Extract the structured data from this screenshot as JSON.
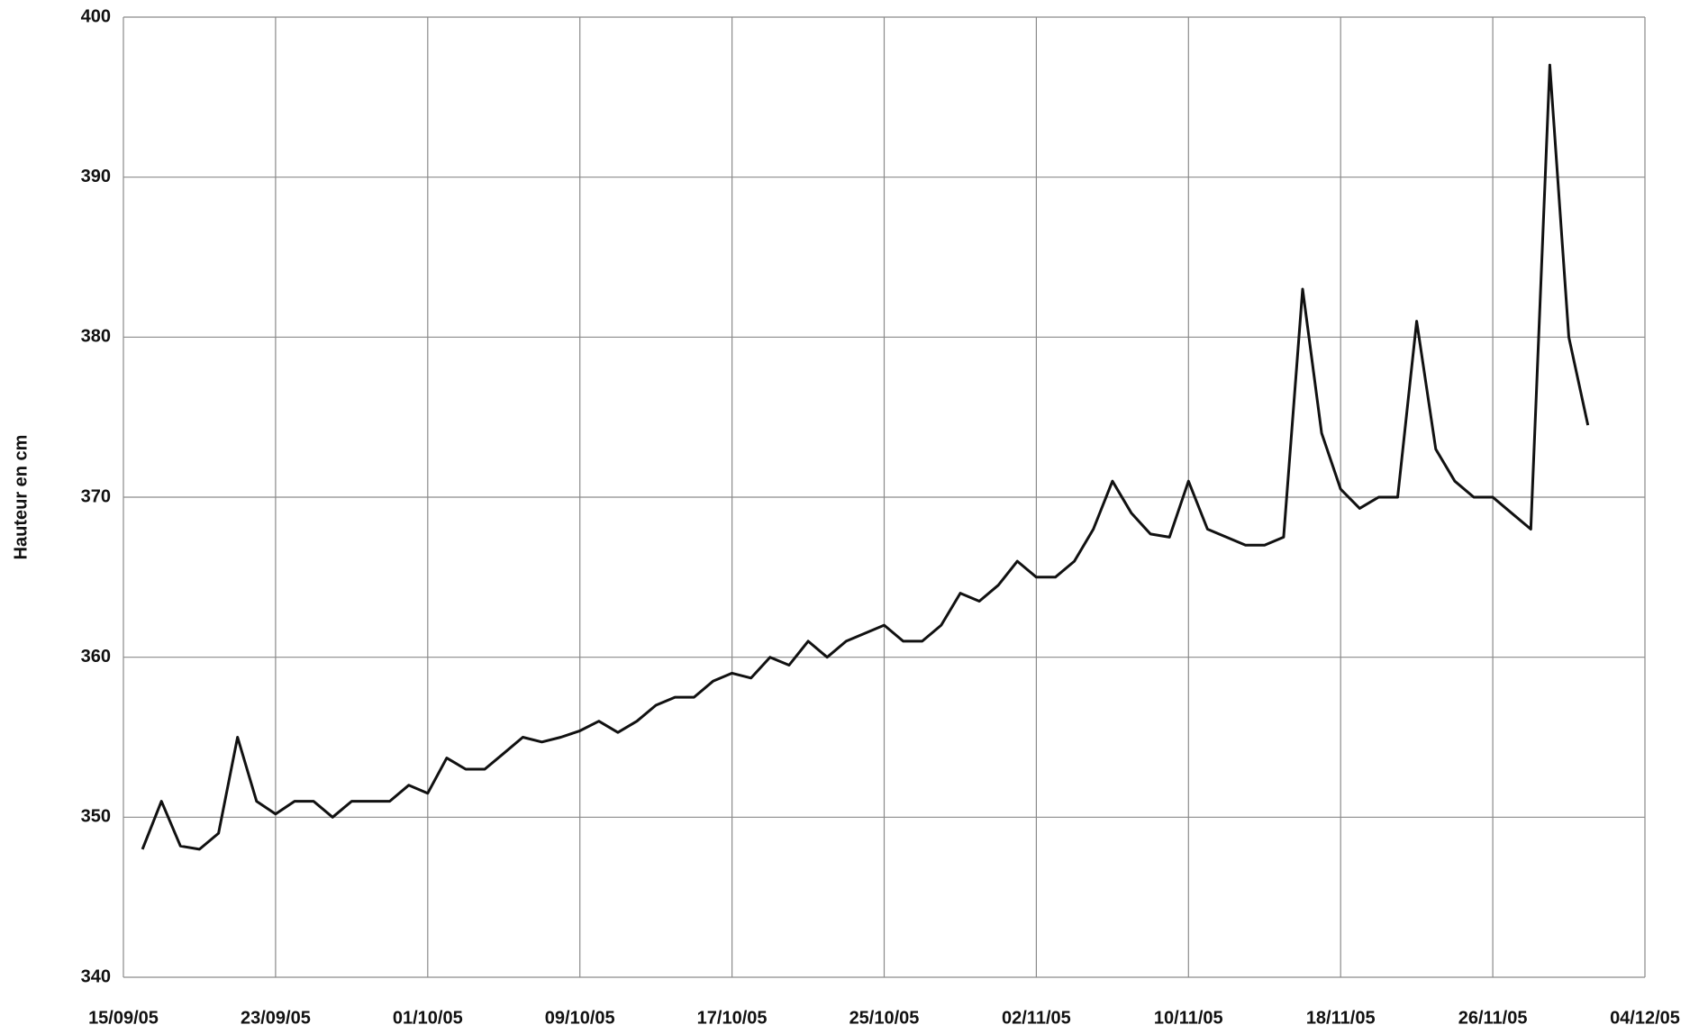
{
  "chart_data": {
    "type": "line",
    "y_label": "Hauteur en cm",
    "x": [
      "2005-09-16",
      "2005-09-17",
      "2005-09-18",
      "2005-09-19",
      "2005-09-20",
      "2005-09-21",
      "2005-09-22",
      "2005-09-23",
      "2005-09-24",
      "2005-09-25",
      "2005-09-26",
      "2005-09-27",
      "2005-09-28",
      "2005-09-29",
      "2005-09-30",
      "2005-10-01",
      "2005-10-02",
      "2005-10-03",
      "2005-10-04",
      "2005-10-05",
      "2005-10-06",
      "2005-10-07",
      "2005-10-08",
      "2005-10-09",
      "2005-10-10",
      "2005-10-11",
      "2005-10-12",
      "2005-10-13",
      "2005-10-14",
      "2005-10-15",
      "2005-10-16",
      "2005-10-17",
      "2005-10-18",
      "2005-10-19",
      "2005-10-20",
      "2005-10-21",
      "2005-10-22",
      "2005-10-23",
      "2005-10-24",
      "2005-10-25",
      "2005-10-26",
      "2005-10-27",
      "2005-10-28",
      "2005-10-29",
      "2005-10-30",
      "2005-10-31",
      "2005-11-01",
      "2005-11-02",
      "2005-11-03",
      "2005-11-04",
      "2005-11-05",
      "2005-11-06",
      "2005-11-07",
      "2005-11-08",
      "2005-11-09",
      "2005-11-10",
      "2005-11-11",
      "2005-11-12",
      "2005-11-13",
      "2005-11-14",
      "2005-11-15",
      "2005-11-16",
      "2005-11-17",
      "2005-11-18",
      "2005-11-19",
      "2005-11-20",
      "2005-11-21",
      "2005-11-22",
      "2005-11-23",
      "2005-11-24",
      "2005-11-25",
      "2005-11-26",
      "2005-11-27",
      "2005-11-28",
      "2005-11-29",
      "2005-11-30",
      "2005-12-01"
    ],
    "series": [
      {
        "name": "Hauteur",
        "color": "#111111",
        "values": [
          348,
          351,
          348.2,
          348,
          349,
          355,
          351,
          350.2,
          351,
          351,
          350,
          351,
          351,
          351,
          352,
          351.5,
          353.7,
          353,
          353,
          354,
          355,
          354.7,
          355,
          355.4,
          356,
          355.3,
          356,
          357,
          357.5,
          357.5,
          358.5,
          359,
          358.7,
          360,
          359.5,
          361,
          360,
          361,
          361.5,
          362,
          361,
          361,
          362,
          364,
          363.5,
          364.5,
          366,
          365,
          365,
          366,
          368,
          371,
          369,
          367.7,
          367.5,
          371,
          368,
          367.5,
          367,
          367,
          367.5,
          383,
          374,
          370.5,
          369.3,
          370,
          370,
          381,
          373,
          371,
          370,
          370,
          369,
          368,
          397,
          380,
          374.5
        ]
      }
    ],
    "xlim": [
      "2005-09-15",
      "2005-12-04"
    ],
    "xticks": [
      {
        "value": "2005-09-15",
        "label": "15/09/05"
      },
      {
        "value": "2005-09-23",
        "label": "23/09/05"
      },
      {
        "value": "2005-10-01",
        "label": "01/10/05"
      },
      {
        "value": "2005-10-09",
        "label": "09/10/05"
      },
      {
        "value": "2005-10-17",
        "label": "17/10/05"
      },
      {
        "value": "2005-10-25",
        "label": "25/10/05"
      },
      {
        "value": "2005-11-02",
        "label": "02/11/05"
      },
      {
        "value": "2005-11-10",
        "label": "10/11/05"
      },
      {
        "value": "2005-11-18",
        "label": "18/11/05"
      },
      {
        "value": "2005-11-26",
        "label": "26/11/05"
      },
      {
        "value": "2005-12-04",
        "label": "04/12/05"
      }
    ],
    "ylim": [
      340,
      400
    ],
    "yticks": [
      340,
      350,
      360,
      370,
      380,
      390,
      400
    ],
    "grid": true
  }
}
